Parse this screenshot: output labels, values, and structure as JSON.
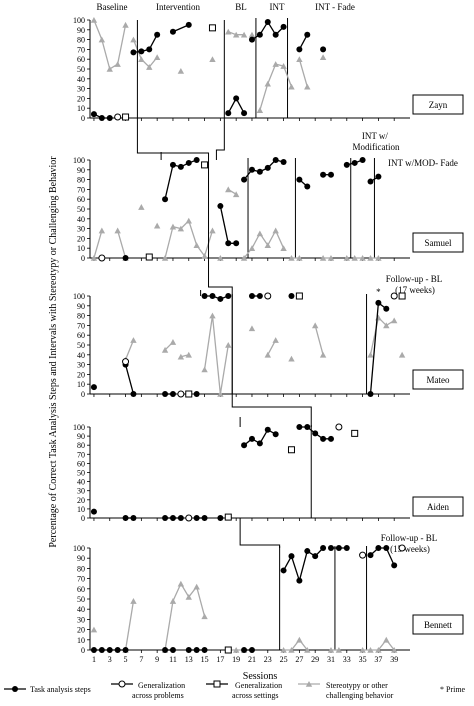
{
  "chart_data": {
    "type": "line",
    "title": "",
    "ylabel": "Percentage of Correct Task Analysis Steps and Intervals with Stereotypy or Challenging Behavior",
    "xlabel": "Sessions",
    "x_ticks": [
      1,
      3,
      5,
      7,
      9,
      11,
      13,
      15,
      17,
      19,
      21,
      23,
      25,
      27,
      29,
      31,
      33,
      35,
      37,
      39
    ],
    "ylim": [
      0,
      100
    ],
    "y_ticks": [
      0,
      10,
      20,
      30,
      40,
      50,
      60,
      70,
      80,
      90,
      100
    ],
    "legend": {
      "placement": "bottom",
      "items": [
        {
          "key": "tasks",
          "label": "Task analysis steps"
        },
        {
          "key": "genProb",
          "label": "Generalization across problems"
        },
        {
          "key": "genSet",
          "label": "Generalization across settings"
        },
        {
          "key": "stereo",
          "label": "Stereotypy or other challenging behavior"
        },
        {
          "key": "prime",
          "label": "* Prime"
        }
      ]
    },
    "phase_labels": {
      "baseline": "Baseline",
      "intervention": "Intervention",
      "bl": "BL",
      "int": "INT",
      "int_fade": "INT - Fade",
      "int_mod": "INT w/ Modification",
      "int_mod_fade": "INT w/MOD- Fade",
      "fu_mateo": "Follow-up - BL (17 weeks)",
      "fu_bennett": "Follow-up - BL (15 weeks)",
      "prime_mark": "*"
    },
    "panels": [
      {
        "name": "Zayn",
        "phase_lines": [
          21.5,
          25.5
        ],
        "tasks": [
          [
            [
              1,
              4
            ],
            [
              2,
              0
            ],
            [
              3,
              0
            ]
          ],
          [
            [
              6,
              67
            ],
            [
              7,
              68
            ],
            [
              8,
              70
            ],
            [
              9,
              85
            ]
          ],
          [
            [
              11,
              88
            ],
            [
              13,
              95
            ]
          ],
          [
            [
              18,
              5
            ],
            [
              19,
              20
            ],
            [
              20,
              5
            ]
          ],
          [
            [
              21,
              80
            ],
            [
              22,
              85
            ],
            [
              23,
              98
            ],
            [
              24,
              85
            ],
            [
              25,
              93
            ]
          ],
          [
            [
              27,
              70
            ],
            [
              28,
              85
            ]
          ],
          [
            [
              30,
              70
            ]
          ]
        ],
        "genProb": [
          [
            4,
            1
          ]
        ],
        "genSet": [
          [
            5,
            1
          ],
          [
            16,
            92
          ]
        ],
        "stereo": [
          [
            [
              1,
              100
            ],
            [
              2,
              80
            ],
            [
              3,
              50
            ],
            [
              4,
              55
            ],
            [
              5,
              95
            ]
          ],
          [
            [
              6,
              80
            ],
            [
              7,
              60
            ],
            [
              8,
              52
            ],
            [
              9,
              62
            ]
          ],
          [
            [
              12,
              48
            ]
          ],
          [
            [
              16,
              60
            ]
          ],
          [
            [
              18,
              88
            ],
            [
              19,
              85
            ],
            [
              20,
              85
            ]
          ],
          [
            [
              21,
              85
            ]
          ],
          [
            [
              22,
              8
            ],
            [
              23,
              35
            ],
            [
              24,
              55
            ],
            [
              25,
              53
            ],
            [
              26,
              32
            ]
          ],
          [
            [
              27,
              60
            ],
            [
              28,
              32
            ]
          ],
          [
            [
              30,
              62
            ]
          ]
        ]
      },
      {
        "name": "Samuel",
        "phase_lines": [
          20.5,
          26.5,
          33.5,
          36.5
        ],
        "tasks": [
          [
            [
              5,
              0
            ]
          ],
          [
            [
              10,
              60
            ],
            [
              11,
              95
            ],
            [
              12,
              93
            ],
            [
              13,
              97
            ],
            [
              14,
              100
            ]
          ],
          [
            [
              17,
              53
            ],
            [
              18,
              15
            ],
            [
              19,
              15
            ]
          ],
          [
            [
              20,
              80
            ],
            [
              21,
              90
            ],
            [
              22,
              88
            ],
            [
              23,
              92
            ],
            [
              24,
              100
            ],
            [
              25,
              98
            ]
          ],
          [
            [
              27,
              80
            ],
            [
              28,
              73
            ]
          ],
          [
            [
              30,
              85
            ],
            [
              31,
              85
            ]
          ],
          [
            [
              33,
              95
            ],
            [
              34,
              97
            ],
            [
              35,
              100
            ]
          ],
          [
            [
              36,
              78
            ],
            [
              37,
              83
            ]
          ]
        ],
        "genProb": [
          [
            2,
            0
          ]
        ],
        "genSet": [
          [
            8,
            1
          ],
          [
            15,
            95
          ]
        ],
        "stereo": [
          [
            [
              1,
              0
            ],
            [
              2,
              28
            ]
          ],
          [
            [
              4,
              28
            ],
            [
              5,
              0
            ]
          ],
          [
            [
              7,
              52
            ]
          ],
          [
            [
              9,
              33
            ]
          ],
          [
            [
              10,
              0
            ],
            [
              11,
              32
            ],
            [
              12,
              30
            ],
            [
              13,
              38
            ],
            [
              14,
              13
            ],
            [
              15,
              2
            ],
            [
              16,
              28
            ]
          ],
          [
            [
              17,
              0
            ]
          ],
          [
            [
              18,
              70
            ],
            [
              19,
              65
            ]
          ],
          [
            [
              20,
              0
            ],
            [
              21,
              10
            ],
            [
              22,
              25
            ],
            [
              23,
              13
            ],
            [
              24,
              28
            ],
            [
              25,
              10
            ]
          ],
          [
            [
              26,
              0
            ],
            [
              27,
              0
            ]
          ],
          [
            [
              30,
              0
            ],
            [
              31,
              0
            ]
          ],
          [
            [
              33,
              0
            ]
          ],
          [
            [
              34,
              0
            ],
            [
              35,
              0
            ]
          ],
          [
            [
              36,
              0
            ],
            [
              37,
              0
            ]
          ]
        ]
      },
      {
        "name": "Mateo",
        "phase_lines": [
          18.5,
          35.5
        ],
        "tasks": [
          [
            [
              1,
              7
            ]
          ],
          [
            [
              5,
              30
            ],
            [
              6,
              0
            ]
          ],
          [
            [
              10,
              0
            ],
            [
              11,
              0
            ]
          ],
          [
            [
              14,
              0
            ]
          ],
          [
            [
              15,
              100
            ],
            [
              16,
              100
            ],
            [
              17,
              97
            ],
            [
              18,
              100
            ]
          ],
          [
            [
              21,
              100
            ],
            [
              22,
              100
            ]
          ],
          [
            [
              26,
              100
            ]
          ],
          [
            [
              36,
              0
            ],
            [
              37,
              93
            ],
            [
              38,
              87
            ]
          ]
        ],
        "genProb": [
          [
            5,
            33
          ],
          [
            12,
            0
          ],
          [
            23,
            100
          ],
          [
            39,
            100
          ]
        ],
        "genSet": [
          [
            13,
            0
          ],
          [
            27,
            100
          ],
          [
            40,
            100
          ]
        ],
        "stereo": [
          [
            [
              5,
              35
            ],
            [
              6,
              55
            ]
          ],
          [
            [
              10,
              45
            ],
            [
              11,
              53
            ]
          ],
          [
            [
              12,
              38
            ],
            [
              13,
              40
            ]
          ],
          [
            [
              15,
              25
            ],
            [
              16,
              80
            ],
            [
              17,
              0
            ],
            [
              18,
              50
            ]
          ],
          [
            [
              21,
              67
            ]
          ],
          [
            [
              23,
              40
            ],
            [
              24,
              55
            ]
          ],
          [
            [
              26,
              36
            ]
          ],
          [
            [
              29,
              70
            ],
            [
              30,
              40
            ]
          ],
          [
            [
              36,
              40
            ],
            [
              37,
              78
            ],
            [
              38,
              70
            ],
            [
              39,
              75
            ]
          ],
          [
            [
              40,
              40
            ]
          ]
        ],
        "prime_x": 37
      },
      {
        "name": "Aiden",
        "phase_lines": [
          28.5
        ],
        "tasks": [
          [
            [
              1,
              7
            ]
          ],
          [
            [
              5,
              0
            ],
            [
              6,
              0
            ]
          ],
          [
            [
              10,
              0
            ],
            [
              11,
              0
            ],
            [
              12,
              0
            ]
          ],
          [
            [
              14,
              0
            ],
            [
              15,
              0
            ]
          ],
          [
            [
              17,
              0
            ]
          ],
          [
            [
              20,
              80
            ],
            [
              21,
              87
            ],
            [
              22,
              82
            ],
            [
              23,
              97
            ],
            [
              24,
              92
            ]
          ],
          [
            [
              27,
              100
            ],
            [
              28,
              100
            ],
            [
              29,
              93
            ],
            [
              30,
              87
            ],
            [
              31,
              87
            ]
          ]
        ],
        "genProb": [
          [
            13,
            0
          ],
          [
            32,
            100
          ]
        ],
        "genSet": [
          [
            18,
            1
          ],
          [
            26,
            75
          ],
          [
            34,
            93
          ]
        ],
        "stereo": []
      },
      {
        "name": "Bennett",
        "phase_lines": [
          24.5,
          31.5,
          35.5
        ],
        "tasks": [
          [
            [
              1,
              0
            ],
            [
              2,
              0
            ],
            [
              3,
              0
            ],
            [
              4,
              0
            ],
            [
              5,
              0
            ]
          ],
          [
            [
              10,
              0
            ],
            [
              11,
              0
            ]
          ],
          [
            [
              13,
              0
            ],
            [
              14,
              0
            ],
            [
              15,
              0
            ]
          ],
          [
            [
              20,
              0
            ],
            [
              21,
              0
            ]
          ],
          [
            [
              25,
              78
            ],
            [
              26,
              92
            ],
            [
              27,
              68
            ],
            [
              28,
              97
            ],
            [
              29,
              92
            ],
            [
              30,
              100
            ]
          ],
          [
            [
              31,
              100
            ],
            [
              32,
              100
            ],
            [
              33,
              100
            ]
          ],
          [
            [
              36,
              93
            ],
            [
              37,
              100
            ],
            [
              38,
              100
            ],
            [
              39,
              83
            ]
          ]
        ],
        "genProb": [
          [
            35,
            93
          ],
          [
            40,
            100
          ]
        ],
        "genSet": [
          [
            18,
            0
          ]
        ],
        "stereo": [
          [
            [
              1,
              20
            ]
          ],
          [
            [
              5,
              0
            ],
            [
              6,
              48
            ]
          ],
          [
            [
              10,
              0
            ],
            [
              11,
              48
            ],
            [
              12,
              65
            ],
            [
              13,
              52
            ],
            [
              14,
              62
            ],
            [
              15,
              33
            ]
          ],
          [
            [
              18,
              0
            ],
            [
              19,
              0
            ],
            [
              20,
              0
            ]
          ],
          [
            [
              25,
              0
            ],
            [
              26,
              0
            ],
            [
              27,
              10
            ],
            [
              28,
              0
            ]
          ],
          [
            [
              31,
              0
            ],
            [
              32,
              0
            ]
          ],
          [
            [
              35,
              0
            ],
            [
              36,
              0
            ],
            [
              37,
              0
            ],
            [
              38,
              10
            ],
            [
              39,
              0
            ]
          ]
        ]
      }
    ]
  }
}
